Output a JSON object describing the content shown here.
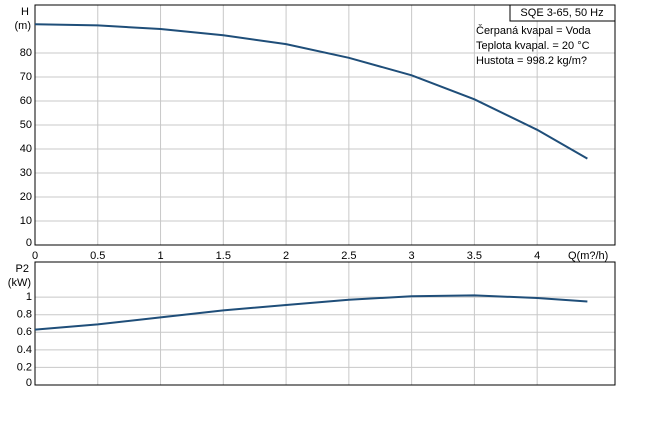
{
  "chart_data": [
    {
      "type": "line",
      "title": "SQE 3-65, 50 Hz",
      "annotations": [
        "Čerpaná kvapal = Voda",
        "Teplota  kvapal. = 20 °C",
        "Hustota = 998.2 kg/m?"
      ],
      "y_label": [
        "H",
        "(m)"
      ],
      "x_label": "Q(m?/h)",
      "x": [
        0,
        0.5,
        1,
        1.5,
        2,
        2.5,
        3,
        3.5,
        4,
        4.4
      ],
      "series": [
        {
          "name": "H",
          "color": "#1f4e79",
          "values": [
            92,
            91.5,
            90,
            87.4,
            83.7,
            78,
            70.7,
            60.7,
            48,
            36
          ]
        }
      ],
      "xlim": [
        0,
        4.62
      ],
      "xticks": [
        0,
        0.5,
        1,
        1.5,
        2,
        2.5,
        3,
        3.5,
        4
      ],
      "ylim": [
        0,
        100
      ],
      "yticks": [
        0,
        10,
        20,
        30,
        40,
        50,
        60,
        70,
        80
      ],
      "grid": true
    },
    {
      "type": "line",
      "y_label": [
        "P2",
        "(kW)"
      ],
      "x": [
        0,
        0.5,
        1,
        1.5,
        2,
        2.5,
        3,
        3.5,
        4,
        4.4
      ],
      "series": [
        {
          "name": "P2",
          "color": "#1f4e79",
          "values": [
            0.63,
            0.69,
            0.77,
            0.85,
            0.91,
            0.97,
            1.01,
            1.02,
            0.99,
            0.95
          ]
        }
      ],
      "xlim": [
        0,
        4.62
      ],
      "xticks": [
        0,
        0.5,
        1,
        1.5,
        2,
        2.5,
        3,
        3.5,
        4
      ],
      "ylim": [
        0,
        1.4
      ],
      "yticks": [
        0,
        0.2,
        0.4,
        0.6,
        0.8,
        1
      ],
      "grid": true
    }
  ]
}
